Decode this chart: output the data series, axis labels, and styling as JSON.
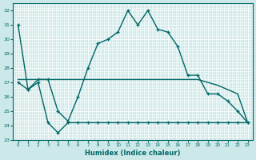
{
  "xlabel": "Humidex (Indice chaleur)",
  "bg_color": "#cce8e8",
  "grid_color": "#b0d4d4",
  "line_color": "#006666",
  "xlim": [
    -0.5,
    23.5
  ],
  "ylim": [
    23,
    32.5
  ],
  "yticks": [
    23,
    24,
    25,
    26,
    27,
    28,
    29,
    30,
    31,
    32
  ],
  "xticks": [
    0,
    1,
    2,
    3,
    4,
    5,
    6,
    7,
    8,
    9,
    10,
    11,
    12,
    13,
    14,
    15,
    16,
    17,
    18,
    19,
    20,
    21,
    22,
    23
  ],
  "line1_x": [
    0,
    1,
    2,
    3,
    4,
    5,
    6,
    7,
    8,
    9,
    10,
    11,
    12,
    13,
    14,
    15,
    16,
    17,
    18,
    19,
    20,
    21,
    22,
    23
  ],
  "line1_y": [
    31.0,
    26.5,
    27.2,
    27.2,
    25.0,
    24.3,
    26.0,
    28.0,
    29.7,
    30.0,
    30.5,
    32.0,
    31.0,
    32.0,
    30.7,
    30.5,
    29.5,
    27.5,
    27.5,
    26.2,
    26.2,
    25.7,
    25.0,
    24.2
  ],
  "line2_x": [
    0,
    1,
    2,
    3,
    4,
    5,
    6,
    7,
    8,
    9,
    10,
    11,
    12,
    13,
    14,
    15,
    16,
    17,
    18,
    19,
    20,
    21,
    22,
    23
  ],
  "line2_y": [
    27.2,
    27.2,
    27.2,
    27.2,
    27.2,
    27.2,
    27.2,
    27.2,
    27.2,
    27.2,
    27.2,
    27.2,
    27.2,
    27.2,
    27.2,
    27.2,
    27.2,
    27.2,
    27.2,
    27.0,
    26.8,
    26.5,
    26.2,
    24.2
  ],
  "line3_x": [
    0,
    1,
    2,
    3,
    4,
    5,
    6,
    7,
    8,
    9,
    10,
    11,
    12,
    13,
    14,
    15,
    16,
    17,
    18,
    19,
    20,
    21,
    22,
    23
  ],
  "line3_y": [
    27.0,
    26.5,
    27.0,
    24.2,
    23.5,
    24.2,
    24.2,
    24.2,
    24.2,
    24.2,
    24.2,
    24.2,
    24.2,
    24.2,
    24.2,
    24.2,
    24.2,
    24.2,
    24.2,
    24.2,
    24.2,
    24.2,
    24.2,
    24.2
  ]
}
